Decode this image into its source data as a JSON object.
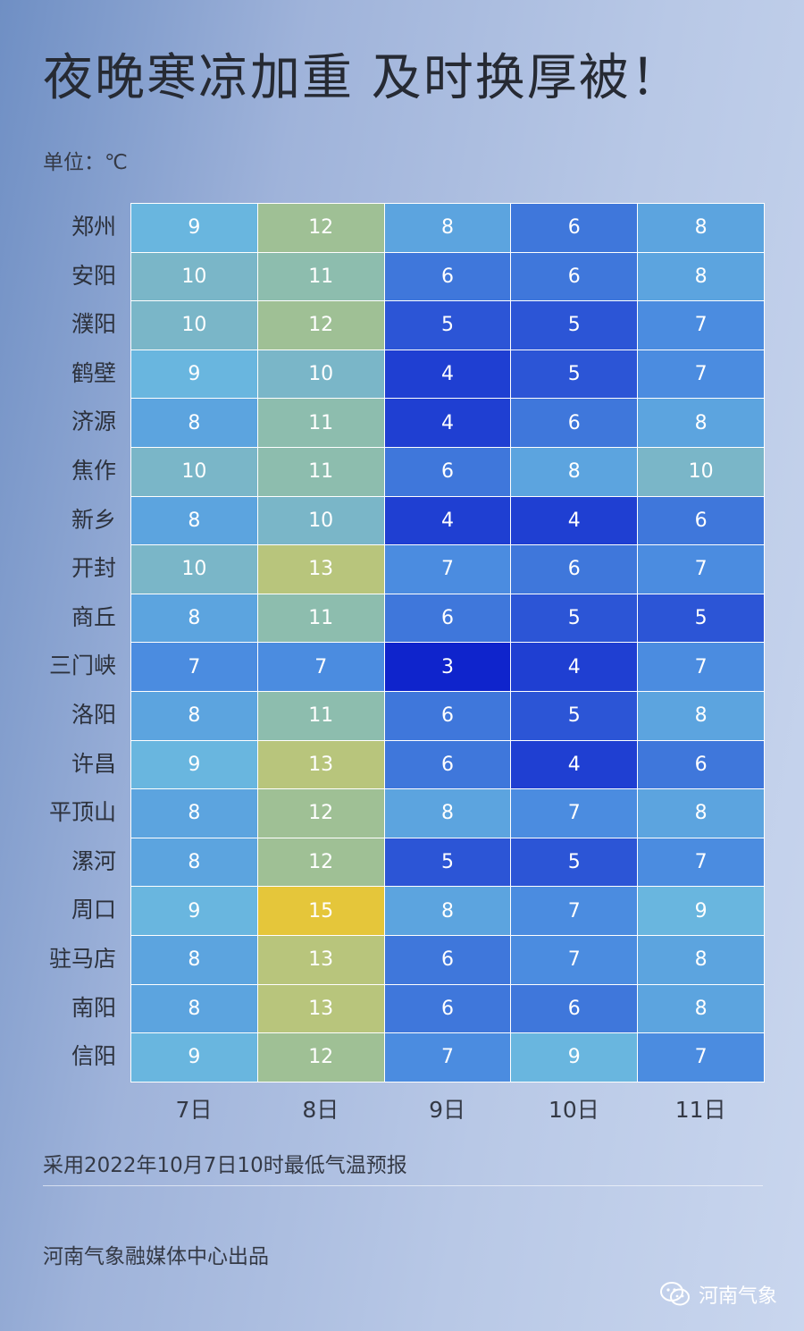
{
  "header": {
    "title": "夜晚寒凉加重 及时换厚被！",
    "unit": "单位：℃"
  },
  "chart_data": {
    "type": "heatmap",
    "title": "夜晚寒凉加重 及时换厚被！",
    "unit": "℃",
    "rows": [
      "郑州",
      "安阳",
      "濮阳",
      "鹤壁",
      "济源",
      "焦作",
      "新乡",
      "开封",
      "商丘",
      "三门峡",
      "洛阳",
      "许昌",
      "平顶山",
      "漯河",
      "周口",
      "驻马店",
      "南阳",
      "信阳"
    ],
    "columns": [
      "7日",
      "8日",
      "9日",
      "10日",
      "11日"
    ],
    "values": [
      [
        9,
        12,
        8,
        6,
        8
      ],
      [
        10,
        11,
        6,
        6,
        8
      ],
      [
        10,
        12,
        5,
        5,
        7
      ],
      [
        9,
        10,
        4,
        5,
        7
      ],
      [
        8,
        11,
        4,
        6,
        8
      ],
      [
        10,
        11,
        6,
        8,
        10
      ],
      [
        8,
        10,
        4,
        4,
        6
      ],
      [
        10,
        13,
        7,
        6,
        7
      ],
      [
        8,
        11,
        6,
        5,
        5
      ],
      [
        7,
        7,
        3,
        4,
        7
      ],
      [
        8,
        11,
        6,
        5,
        8
      ],
      [
        9,
        13,
        6,
        4,
        6
      ],
      [
        8,
        12,
        8,
        7,
        8
      ],
      [
        8,
        12,
        5,
        5,
        7
      ],
      [
        9,
        15,
        8,
        7,
        9
      ],
      [
        8,
        13,
        6,
        7,
        8
      ],
      [
        8,
        13,
        6,
        6,
        8
      ],
      [
        9,
        12,
        7,
        9,
        7
      ]
    ],
    "color_scale": {
      "3": "#0f24cc",
      "4": "#1f3fd2",
      "5": "#2c55d6",
      "6": "#3f77db",
      "7": "#4b8ce0",
      "8": "#5ca4df",
      "9": "#69b6df",
      "10": "#7ab6c8",
      "11": "#8dbdae",
      "12": "#9fc095",
      "13": "#b8c57c",
      "15": "#e5c63a"
    }
  },
  "footer": {
    "note": "采用2022年10月7日10时最低气温预报",
    "credit": "河南气象融媒体中心出品",
    "brand": "河南气象"
  }
}
